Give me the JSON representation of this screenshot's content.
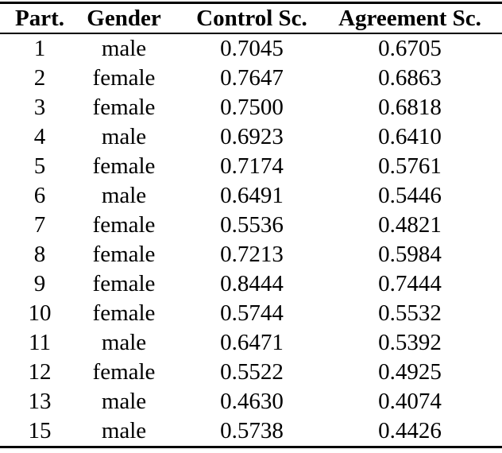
{
  "page": {
    "background": "#ffffff",
    "text_color": "#000000",
    "rule_color": "#000000"
  },
  "table": {
    "columns": [
      "Part.",
      "Gender",
      "Control Sc.",
      "Agreement Sc."
    ],
    "rows": [
      [
        "1",
        "male",
        "0.7045",
        "0.6705"
      ],
      [
        "2",
        "female",
        "0.7647",
        "0.6863"
      ],
      [
        "3",
        "female",
        "0.7500",
        "0.6818"
      ],
      [
        "4",
        "male",
        "0.6923",
        "0.6410"
      ],
      [
        "5",
        "female",
        "0.7174",
        "0.5761"
      ],
      [
        "6",
        "male",
        "0.6491",
        "0.5446"
      ],
      [
        "7",
        "female",
        "0.5536",
        "0.4821"
      ],
      [
        "8",
        "female",
        "0.7213",
        "0.5984"
      ],
      [
        "9",
        "female",
        "0.8444",
        "0.7444"
      ],
      [
        "10",
        "female",
        "0.5744",
        "0.5532"
      ],
      [
        "11",
        "male",
        "0.6471",
        "0.5392"
      ],
      [
        "12",
        "female",
        "0.5522",
        "0.4925"
      ],
      [
        "13",
        "male",
        "0.4630",
        "0.4074"
      ],
      [
        "15",
        "male",
        "0.5738",
        "0.4426"
      ]
    ]
  },
  "chart_data": {
    "type": "table",
    "columns": [
      "Part.",
      "Gender",
      "Control Sc.",
      "Agreement Sc."
    ],
    "rows": [
      [
        1,
        "male",
        0.7045,
        0.6705
      ],
      [
        2,
        "female",
        0.7647,
        0.6863
      ],
      [
        3,
        "female",
        0.75,
        0.6818
      ],
      [
        4,
        "male",
        0.6923,
        0.641
      ],
      [
        5,
        "female",
        0.7174,
        0.5761
      ],
      [
        6,
        "male",
        0.6491,
        0.5446
      ],
      [
        7,
        "female",
        0.5536,
        0.4821
      ],
      [
        8,
        "female",
        0.7213,
        0.5984
      ],
      [
        9,
        "female",
        0.8444,
        0.7444
      ],
      [
        10,
        "female",
        0.5744,
        0.5532
      ],
      [
        11,
        "male",
        0.6471,
        0.5392
      ],
      [
        12,
        "female",
        0.5522,
        0.4925
      ],
      [
        13,
        "male",
        0.463,
        0.4074
      ],
      [
        15,
        "male",
        0.5738,
        0.4426
      ]
    ]
  }
}
